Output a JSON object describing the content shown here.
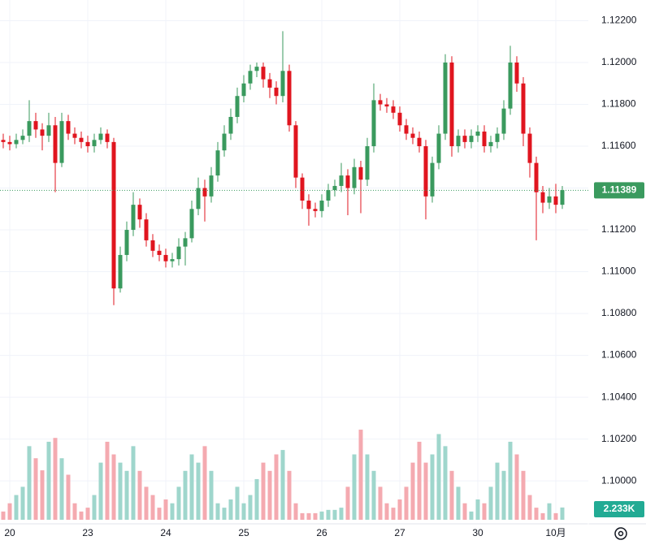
{
  "chart_data": {
    "type": "candlestick",
    "categories": [
      null,
      "20",
      null,
      null,
      null,
      null,
      null,
      null,
      null,
      null,
      null,
      null,
      null,
      "23",
      null,
      null,
      null,
      null,
      null,
      null,
      null,
      null,
      null,
      null,
      null,
      "24",
      null,
      null,
      null,
      null,
      null,
      null,
      null,
      null,
      null,
      null,
      null,
      "25",
      null,
      null,
      null,
      null,
      null,
      null,
      null,
      null,
      null,
      null,
      null,
      "26",
      null,
      null,
      null,
      null,
      null,
      null,
      null,
      null,
      null,
      null,
      null,
      "27",
      null,
      null,
      null,
      null,
      null,
      null,
      null,
      null,
      null,
      null,
      null,
      "30",
      null,
      null,
      null,
      null,
      null,
      null,
      null,
      null,
      null,
      null,
      null,
      "10月",
      null
    ],
    "open": [
      1.1163,
      1.1162,
      1.1161,
      1.1163,
      1.1165,
      1.1172,
      1.1168,
      1.1165,
      1.117,
      1.1152,
      1.1172,
      1.1166,
      1.1164,
      1.1162,
      1.116,
      1.1163,
      1.1166,
      1.1162,
      1.1092,
      1.1108,
      1.112,
      1.1132,
      1.1125,
      1.1115,
      1.111,
      1.1108,
      1.1105,
      1.1106,
      1.1112,
      1.1116,
      1.113,
      1.114,
      1.1136,
      1.1146,
      1.1158,
      1.1166,
      1.1174,
      1.1184,
      1.119,
      1.1196,
      1.1198,
      1.1192,
      1.1188,
      1.1184,
      1.1196,
      1.117,
      1.1145,
      1.1134,
      1.113,
      1.1129,
      1.1134,
      1.1139,
      1.1141,
      1.1146,
      1.114,
      1.115,
      1.1144,
      1.116,
      1.1182,
      1.118,
      1.1179,
      1.1176,
      1.117,
      1.1166,
      1.1164,
      1.116,
      1.1136,
      1.1152,
      1.1166,
      1.12,
      1.116,
      1.1165,
      1.1162,
      1.1165,
      1.1167,
      1.116,
      1.1162,
      1.1166,
      1.1178,
      1.12,
      1.119,
      1.1166,
      1.1152,
      1.1138,
      1.1133,
      1.1136,
      1.1132
    ],
    "high": [
      1.1166,
      1.1165,
      1.1166,
      1.1168,
      1.1182,
      1.1176,
      1.1171,
      1.1176,
      1.1174,
      1.1176,
      1.1175,
      1.1169,
      1.1167,
      1.1165,
      1.1166,
      1.1169,
      1.1168,
      1.1164,
      1.1112,
      1.1124,
      1.1138,
      1.1135,
      1.1128,
      1.1118,
      1.1113,
      1.1111,
      1.1109,
      1.1116,
      1.1119,
      1.1134,
      1.1145,
      1.1144,
      1.115,
      1.1162,
      1.117,
      1.1178,
      1.1188,
      1.1194,
      1.1199,
      1.12,
      1.12,
      1.1195,
      1.1191,
      1.1215,
      1.1199,
      1.1172,
      1.1147,
      1.1137,
      1.1133,
      1.1137,
      1.1142,
      1.1144,
      1.1152,
      1.1149,
      1.1154,
      1.1153,
      1.1164,
      1.119,
      1.1185,
      1.1183,
      1.1182,
      1.1179,
      1.1173,
      1.1169,
      1.1167,
      1.1163,
      1.1155,
      1.117,
      1.1204,
      1.1203,
      1.1168,
      1.1168,
      1.1168,
      1.117,
      1.117,
      1.1165,
      1.1169,
      1.1182,
      1.1208,
      1.1203,
      1.1193,
      1.1169,
      1.1155,
      1.1141,
      1.114,
      1.1142,
      1.1141
    ],
    "low": [
      1.1159,
      1.1158,
      1.1159,
      1.1161,
      1.1162,
      1.1164,
      1.1158,
      1.1162,
      1.1138,
      1.115,
      1.1163,
      1.1161,
      1.1159,
      1.1157,
      1.1157,
      1.1161,
      1.1159,
      1.1084,
      1.109,
      1.1105,
      1.1117,
      1.1121,
      1.1112,
      1.1107,
      1.1105,
      1.1102,
      1.1102,
      1.1103,
      1.1103,
      1.1114,
      1.1127,
      1.1124,
      1.1133,
      1.1143,
      1.1155,
      1.1163,
      1.1171,
      1.1181,
      1.1187,
      1.1193,
      1.1188,
      1.1183,
      1.118,
      1.1181,
      1.1167,
      1.114,
      1.113,
      1.1122,
      1.1126,
      1.1126,
      1.1131,
      1.1136,
      1.1138,
      1.1127,
      1.1137,
      1.1128,
      1.1141,
      1.1157,
      1.1177,
      1.1176,
      1.1173,
      1.1167,
      1.1163,
      1.1161,
      1.1157,
      1.1125,
      1.1133,
      1.1149,
      1.1163,
      1.1155,
      1.1157,
      1.1159,
      1.1159,
      1.1162,
      1.1157,
      1.1157,
      1.1159,
      1.1163,
      1.1175,
      1.1186,
      1.116,
      1.1145,
      1.1115,
      1.1128,
      1.113,
      1.1128,
      1.113
    ],
    "close": [
      1.1162,
      1.1161,
      1.1163,
      1.1165,
      1.1172,
      1.1168,
      1.1165,
      1.117,
      1.1152,
      1.1172,
      1.1166,
      1.1164,
      1.1162,
      1.116,
      1.1163,
      1.1166,
      1.1162,
      1.1092,
      1.1108,
      1.112,
      1.1132,
      1.1125,
      1.1115,
      1.111,
      1.1108,
      1.1105,
      1.1106,
      1.1112,
      1.1116,
      1.113,
      1.114,
      1.1136,
      1.1146,
      1.1158,
      1.1166,
      1.1174,
      1.1184,
      1.119,
      1.1196,
      1.1198,
      1.1192,
      1.1188,
      1.1184,
      1.1196,
      1.117,
      1.1145,
      1.1134,
      1.113,
      1.1129,
      1.1134,
      1.1139,
      1.1141,
      1.1146,
      1.114,
      1.115,
      1.1144,
      1.116,
      1.1182,
      1.118,
      1.1179,
      1.1176,
      1.117,
      1.1166,
      1.1164,
      1.116,
      1.1136,
      1.1152,
      1.1166,
      1.12,
      1.116,
      1.1165,
      1.1162,
      1.1165,
      1.1167,
      1.116,
      1.1162,
      1.1166,
      1.1178,
      1.12,
      1.119,
      1.1166,
      1.1152,
      1.1138,
      1.1133,
      1.1136,
      1.1132,
      1.1139
    ],
    "volume": [
      1500,
      3000,
      4500,
      6000,
      13400,
      11200,
      9000,
      14200,
      14900,
      11200,
      8200,
      3000,
      1500,
      2200,
      4500,
      10400,
      14200,
      11900,
      10400,
      8900,
      13400,
      8900,
      6000,
      4500,
      2200,
      3700,
      3000,
      6000,
      8900,
      11900,
      10400,
      13400,
      8900,
      3000,
      2200,
      3700,
      6000,
      3000,
      4500,
      7400,
      10400,
      8900,
      11900,
      12700,
      8900,
      3000,
      1200,
      1200,
      1200,
      1500,
      1800,
      1800,
      2200,
      6000,
      11900,
      16400,
      11900,
      8900,
      6000,
      3000,
      2200,
      3700,
      6000,
      10400,
      14200,
      10400,
      11900,
      15600,
      13400,
      8900,
      6000,
      3000,
      1500,
      3700,
      3000,
      6000,
      10400,
      8900,
      14200,
      11900,
      8900,
      4500,
      2200,
      1200,
      3000,
      1200,
      2233
    ],
    "last_volume_label": "2.233K",
    "ylim": [
      1.09814,
      1.12299
    ],
    "yticks": [
      {
        "value": 1.122,
        "label": "1.12200"
      },
      {
        "value": 1.12,
        "label": "1.12000"
      },
      {
        "value": 1.118,
        "label": "1.11800"
      },
      {
        "value": 1.116,
        "label": "1.11600"
      },
      {
        "value": 1.114,
        "label": "1.11400"
      },
      {
        "value": 1.112,
        "label": "1.11200"
      },
      {
        "value": 1.11,
        "label": "1.11000"
      },
      {
        "value": 1.108,
        "label": "1.10800"
      },
      {
        "value": 1.106,
        "label": "1.10600"
      },
      {
        "value": 1.104,
        "label": "1.10400"
      },
      {
        "value": 1.102,
        "label": "1.10200"
      },
      {
        "value": 1.1,
        "label": "1.10000"
      }
    ],
    "volume_lim": [
      0,
      17000
    ],
    "last_price": {
      "value": 1.11389,
      "label": "1.11389"
    },
    "up_color": "#3a9a5e",
    "down_color": "#e0151f",
    "volume_up_color": "#9fd6cc",
    "volume_down_color": "#f4aab0",
    "grid": true
  }
}
